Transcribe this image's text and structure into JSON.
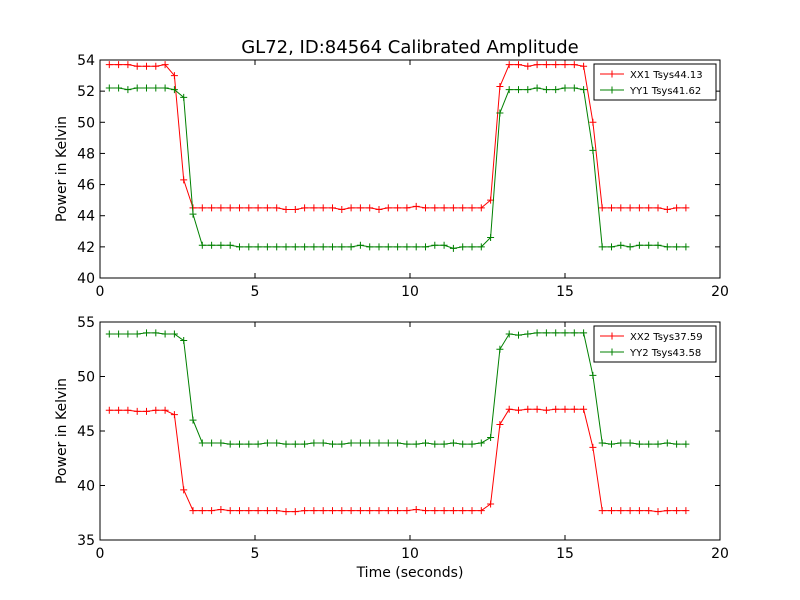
{
  "figure": {
    "title": "GL72, ID:84564 Calibrated Amplitude",
    "xlabel": "Time (seconds)",
    "background": "#ffffff"
  },
  "chart_data": [
    {
      "type": "line",
      "title": "GL72, ID:84564 Calibrated Amplitude",
      "xlabel": "",
      "ylabel": "Power in Kelvin",
      "xlim": [
        0,
        20
      ],
      "ylim": [
        40,
        54
      ],
      "xticks": [
        0,
        5,
        10,
        15,
        20
      ],
      "yticks": [
        40,
        42,
        44,
        46,
        48,
        50,
        52,
        54
      ],
      "grid": false,
      "legend_position": "top-right",
      "x": [
        0.3,
        0.6,
        0.9,
        1.2,
        1.5,
        1.8,
        2.1,
        2.4,
        2.7,
        3.0,
        3.3,
        3.6,
        3.9,
        4.2,
        4.5,
        4.8,
        5.1,
        5.4,
        5.7,
        6.0,
        6.3,
        6.6,
        6.9,
        7.2,
        7.5,
        7.8,
        8.1,
        8.4,
        8.7,
        9.0,
        9.3,
        9.6,
        9.9,
        10.2,
        10.5,
        10.8,
        11.1,
        11.4,
        11.7,
        12.0,
        12.3,
        12.6,
        12.9,
        13.2,
        13.5,
        13.8,
        14.1,
        14.4,
        14.7,
        15.0,
        15.3,
        15.6,
        15.9,
        16.2,
        16.5,
        16.8,
        17.1,
        17.4,
        17.7,
        18.0,
        18.3,
        18.6,
        18.9
      ],
      "series": [
        {
          "name": "XX1 Tsys44.13",
          "color": "#ff0000",
          "values": [
            53.7,
            53.7,
            53.7,
            53.6,
            53.6,
            53.6,
            53.7,
            53.0,
            46.3,
            44.5,
            44.5,
            44.5,
            44.5,
            44.5,
            44.5,
            44.5,
            44.5,
            44.5,
            44.5,
            44.4,
            44.4,
            44.5,
            44.5,
            44.5,
            44.5,
            44.4,
            44.5,
            44.5,
            44.5,
            44.4,
            44.5,
            44.5,
            44.5,
            44.6,
            44.5,
            44.5,
            44.5,
            44.5,
            44.5,
            44.5,
            44.5,
            45.0,
            52.3,
            53.7,
            53.7,
            53.6,
            53.7,
            53.7,
            53.7,
            53.7,
            53.7,
            53.6,
            50.0,
            44.5,
            44.5,
            44.5,
            44.5,
            44.5,
            44.5,
            44.5,
            44.4,
            44.5,
            44.5
          ]
        },
        {
          "name": "YY1 Tsys41.62",
          "color": "#008000",
          "values": [
            52.2,
            52.2,
            52.1,
            52.2,
            52.2,
            52.2,
            52.2,
            52.1,
            51.6,
            44.1,
            42.1,
            42.1,
            42.1,
            42.1,
            42.0,
            42.0,
            42.0,
            42.0,
            42.0,
            42.0,
            42.0,
            42.0,
            42.0,
            42.0,
            42.0,
            42.0,
            42.0,
            42.1,
            42.0,
            42.0,
            42.0,
            42.0,
            42.0,
            42.0,
            42.0,
            42.1,
            42.1,
            41.9,
            42.0,
            42.0,
            42.0,
            42.6,
            50.6,
            52.1,
            52.1,
            52.1,
            52.2,
            52.1,
            52.1,
            52.2,
            52.2,
            52.1,
            48.2,
            42.0,
            42.0,
            42.1,
            42.0,
            42.1,
            42.1,
            42.1,
            42.0,
            42.0,
            42.0
          ]
        }
      ]
    },
    {
      "type": "line",
      "title": "",
      "xlabel": "Time (seconds)",
      "ylabel": "Power in Kelvin",
      "xlim": [
        0,
        20
      ],
      "ylim": [
        35,
        55
      ],
      "xticks": [
        0,
        5,
        10,
        15,
        20
      ],
      "yticks": [
        35,
        40,
        45,
        50,
        55
      ],
      "grid": false,
      "legend_position": "top-right",
      "x": [
        0.3,
        0.6,
        0.9,
        1.2,
        1.5,
        1.8,
        2.1,
        2.4,
        2.7,
        3.0,
        3.3,
        3.6,
        3.9,
        4.2,
        4.5,
        4.8,
        5.1,
        5.4,
        5.7,
        6.0,
        6.3,
        6.6,
        6.9,
        7.2,
        7.5,
        7.8,
        8.1,
        8.4,
        8.7,
        9.0,
        9.3,
        9.6,
        9.9,
        10.2,
        10.5,
        10.8,
        11.1,
        11.4,
        11.7,
        12.0,
        12.3,
        12.6,
        12.9,
        13.2,
        13.5,
        13.8,
        14.1,
        14.4,
        14.7,
        15.0,
        15.3,
        15.6,
        15.9,
        16.2,
        16.5,
        16.8,
        17.1,
        17.4,
        17.7,
        18.0,
        18.3,
        18.6,
        18.9
      ],
      "series": [
        {
          "name": "XX2 Tsys37.59",
          "color": "#ff0000",
          "values": [
            46.9,
            46.9,
            46.9,
            46.8,
            46.8,
            46.9,
            46.9,
            46.5,
            39.6,
            37.7,
            37.7,
            37.7,
            37.8,
            37.7,
            37.7,
            37.7,
            37.7,
            37.7,
            37.7,
            37.6,
            37.6,
            37.7,
            37.7,
            37.7,
            37.7,
            37.7,
            37.7,
            37.7,
            37.7,
            37.7,
            37.7,
            37.7,
            37.7,
            37.8,
            37.7,
            37.7,
            37.7,
            37.7,
            37.7,
            37.7,
            37.7,
            38.3,
            45.6,
            47.0,
            46.9,
            47.0,
            47.0,
            46.9,
            47.0,
            47.0,
            47.0,
            47.0,
            43.5,
            37.7,
            37.7,
            37.7,
            37.7,
            37.7,
            37.7,
            37.6,
            37.7,
            37.7,
            37.7
          ]
        },
        {
          "name": "YY2 Tsys43.58",
          "color": "#008000",
          "values": [
            53.9,
            53.9,
            53.9,
            53.9,
            54.0,
            54.0,
            53.9,
            53.9,
            53.3,
            46.0,
            43.9,
            43.9,
            43.9,
            43.8,
            43.8,
            43.8,
            43.8,
            43.9,
            43.9,
            43.8,
            43.8,
            43.8,
            43.9,
            43.9,
            43.8,
            43.8,
            43.9,
            43.9,
            43.9,
            43.9,
            43.9,
            43.9,
            43.8,
            43.8,
            43.9,
            43.8,
            43.8,
            43.9,
            43.8,
            43.8,
            43.9,
            44.4,
            52.5,
            53.9,
            53.8,
            53.9,
            54.0,
            54.0,
            54.0,
            54.0,
            54.0,
            54.0,
            50.1,
            43.9,
            43.8,
            43.9,
            43.9,
            43.8,
            43.8,
            43.8,
            43.9,
            43.8,
            43.8
          ]
        }
      ]
    }
  ]
}
